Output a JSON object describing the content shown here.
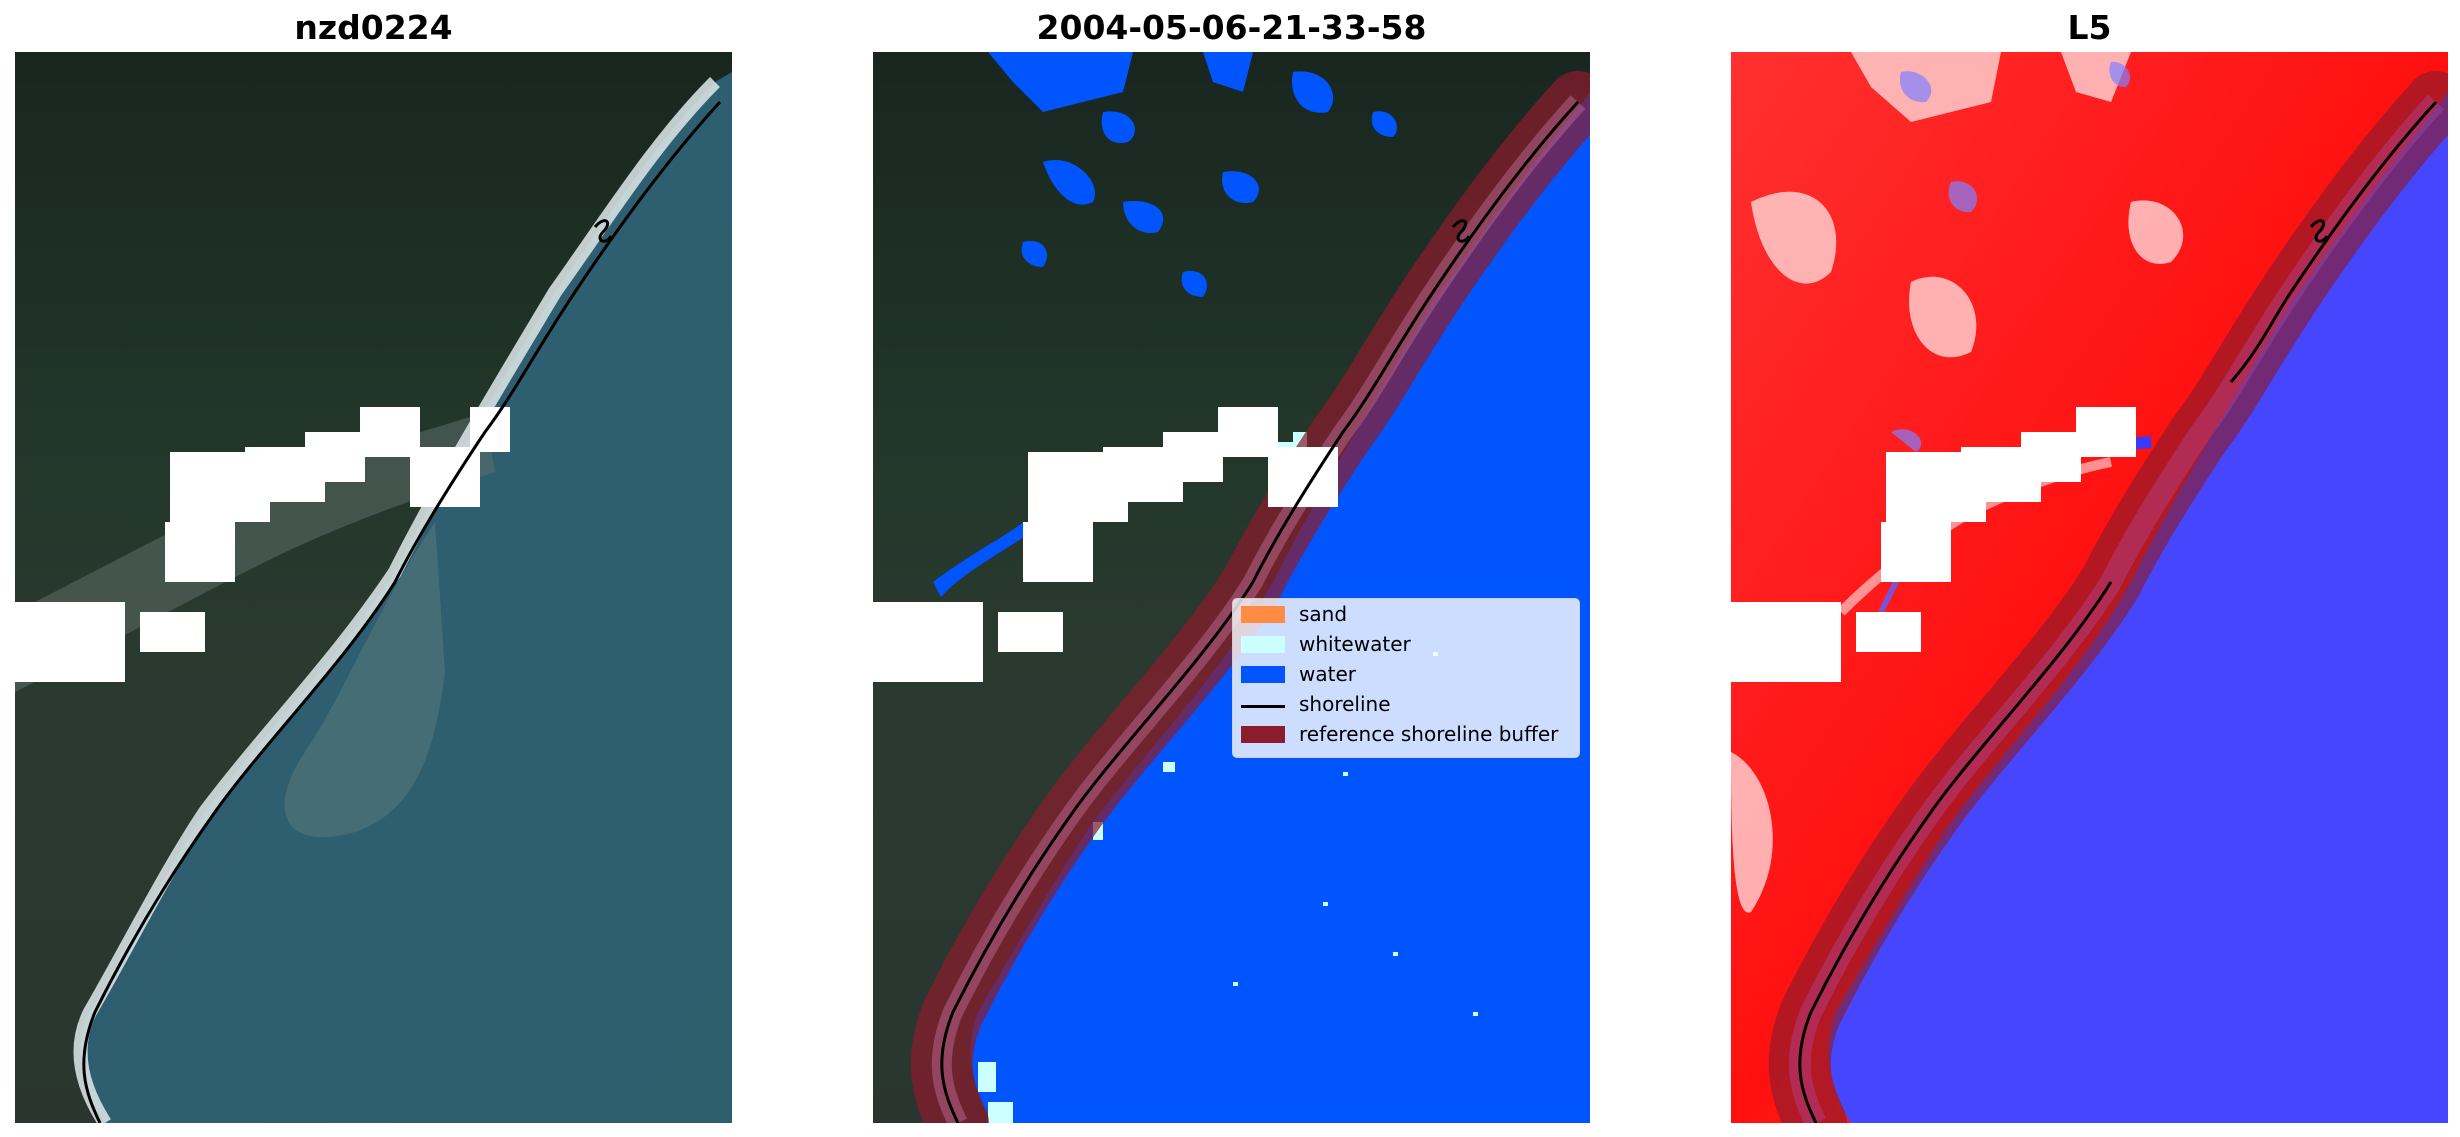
{
  "panels": [
    {
      "title": "nzd0224",
      "image": "rgb-satellite-image"
    },
    {
      "title": "2004-05-06-21-33-58",
      "image": "classified-image"
    },
    {
      "title": "L5",
      "image": "mndwi-index-image"
    }
  ],
  "legend": {
    "items": [
      {
        "label": "sand",
        "color": "#ff8c42",
        "kind": "patch"
      },
      {
        "label": "whitewater",
        "color": "#ccffff",
        "kind": "patch"
      },
      {
        "label": "water",
        "color": "#0055ff",
        "kind": "patch"
      },
      {
        "label": "shoreline",
        "color": "#000000",
        "kind": "line"
      },
      {
        "label": "reference shoreline buffer",
        "color": "#8b1c2c",
        "kind": "patch"
      }
    ]
  },
  "colors": {
    "land_dark": "#1f3027",
    "sea_rgb": "#2c5a6a",
    "water_class": "#0055ff",
    "buffer": "#8b1c2c",
    "cloud_mask": "#ffffff",
    "index_positive": "#ff1a1a",
    "index_negative": "#3a3aff"
  }
}
